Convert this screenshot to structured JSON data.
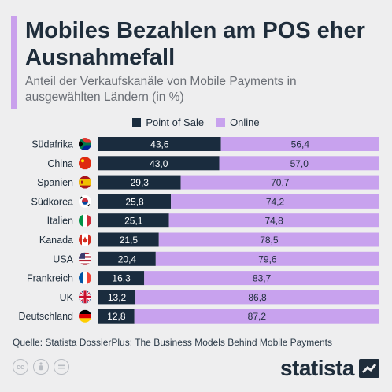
{
  "header": {
    "title": "Mobiles Bezahlen am POS eher Ausnahmefall",
    "subtitle": "Anteil der Verkaufskanäle von Mobile Payments in ausgewählten Ländern (in %)"
  },
  "footer": {
    "source": "Quelle: Statista DossierPlus: The Business Models Behind Mobile Payments",
    "brand": "statista",
    "license_icons": [
      "cc-icon",
      "attribution-icon",
      "no-derivatives-icon"
    ]
  },
  "colors": {
    "pos": "#1a2c3e",
    "online": "#c8a2ee",
    "background": "#eeeeef"
  },
  "chart_data": {
    "type": "bar",
    "orientation": "horizontal",
    "stacked": true,
    "categories": [
      "Südafrika",
      "China",
      "Spanien",
      "Südkorea",
      "Italien",
      "Kanada",
      "USA",
      "Frankreich",
      "UK",
      "Deutschland"
    ],
    "category_icons": [
      "south-africa-flag-icon",
      "china-flag-icon",
      "spain-flag-icon",
      "south-korea-flag-icon",
      "italy-flag-icon",
      "canada-flag-icon",
      "usa-flag-icon",
      "france-flag-icon",
      "uk-flag-icon",
      "germany-flag-icon"
    ],
    "series": [
      {
        "name": "Point of Sale",
        "values": [
          43.6,
          43.0,
          29.3,
          25.8,
          25.1,
          21.5,
          20.4,
          16.3,
          13.2,
          12.8
        ],
        "labels": [
          "43,6",
          "43,0",
          "29,3",
          "25,8",
          "25,1",
          "21,5",
          "20,4",
          "16,3",
          "13,2",
          "12,8"
        ]
      },
      {
        "name": "Online",
        "values": [
          56.4,
          57.0,
          70.7,
          74.2,
          74.8,
          78.5,
          79.6,
          83.7,
          86.8,
          87.2
        ],
        "labels": [
          "56,4",
          "57,0",
          "70,7",
          "74,2",
          "74,8",
          "78,5",
          "79,6",
          "83,7",
          "86,8",
          "87,2"
        ]
      }
    ],
    "xlim": [
      0,
      100
    ],
    "legend_position": "top-center",
    "grid": false
  }
}
